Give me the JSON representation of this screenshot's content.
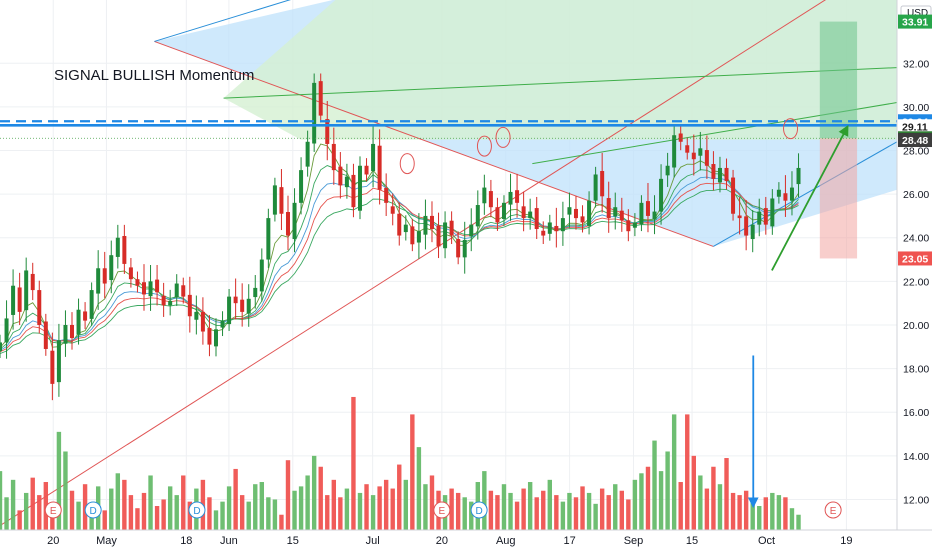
{
  "annotation_text": "SIGNAL BULLISH Momentum",
  "currency_label": "USD",
  "colors": {
    "up": "#43a047",
    "down": "#ef3b36",
    "grid": "#eef0f3",
    "price_line": "#1e88e5",
    "fib_blue": "#bfe1fb",
    "fib_green": "#d5f0d2",
    "arrow_green": "#2e9e2e",
    "arrow_blue": "#1e88e5"
  },
  "price_badges": [
    {
      "label": "33.91",
      "value": 33.91,
      "bg": "#27a54a",
      "fg": "#ffffff"
    },
    {
      "label": "29.34",
      "value": 29.34,
      "bg": "#1e88e5",
      "fg": "#ffffff"
    },
    {
      "label": "29.11",
      "value": 29.11,
      "bg": "#ffffff",
      "fg": "#1b1b1b"
    },
    {
      "label": "28.56",
      "value": 28.56,
      "bg": "#2e7d32",
      "fg": "#ffffff"
    },
    {
      "label": "28.48",
      "value": 28.48,
      "bg": "#3d3d3d",
      "fg": "#ffffff"
    },
    {
      "label": "23.05",
      "value": 23.05,
      "bg": "#ef5350",
      "fg": "#ffffff"
    }
  ],
  "earnings_markers": [
    {
      "label": "E",
      "x_day": 20,
      "kind": "earnings"
    },
    {
      "label": "D",
      "x_day": 35,
      "kind": "dividend"
    },
    {
      "label": "D",
      "x_day": 74,
      "kind": "dividend"
    },
    {
      "label": "E",
      "x_day": 166,
      "kind": "earnings"
    },
    {
      "label": "D",
      "x_day": 180,
      "kind": "dividend"
    },
    {
      "label": "E",
      "x_day": 313,
      "kind": "earnings"
    }
  ],
  "chart_data": {
    "type": "candlestick",
    "x_tick_labels": [
      {
        "label": "20",
        "day": 20
      },
      {
        "label": "May",
        "day": 40
      },
      {
        "label": "18",
        "day": 70
      },
      {
        "label": "Jun",
        "day": 86
      },
      {
        "label": "15",
        "day": 110
      },
      {
        "label": "Jul",
        "day": 140
      },
      {
        "label": "20",
        "day": 166
      },
      {
        "label": "Aug",
        "day": 190
      },
      {
        "label": "17",
        "day": 214
      },
      {
        "label": "Sep",
        "day": 238
      },
      {
        "label": "15",
        "day": 260
      },
      {
        "label": "Oct",
        "day": 288
      },
      {
        "label": "19",
        "day": 318
      }
    ],
    "y_ticks": [
      12,
      14,
      16,
      18,
      20,
      22,
      24,
      26,
      28,
      30,
      32
    ],
    "ylim": [
      10.6,
      34.9
    ],
    "xlim": [
      0,
      337
    ],
    "last_day": 300,
    "closes": [
      19.2,
      20.3,
      21.8,
      20.6,
      22.5,
      21.6,
      20.0,
      18.9,
      17.3,
      19.3,
      20.0,
      19.4,
      20.7,
      20.2,
      21.6,
      22.6,
      21.9,
      23.2,
      24.0,
      22.8,
      22.1,
      21.8,
      21.4,
      22.0,
      21.5,
      20.9,
      21.1,
      21.9,
      21.3,
      20.4,
      20.6,
      19.7,
      19.1,
      19.8,
      20.2,
      21.3,
      21.0,
      20.6,
      21.2,
      21.7,
      23.0,
      24.9,
      26.4,
      25.1,
      24.1,
      25.6,
      27.1,
      28.4,
      31.1,
      29.6,
      28.3,
      27.1,
      26.4,
      26.8,
      25.4,
      27.3,
      26.9,
      28.3,
      26.2,
      25.6,
      25.1,
      24.1,
      24.6,
      23.7,
      24.3,
      25.0,
      24.4,
      23.6,
      24.7,
      24.1,
      23.1,
      23.9,
      24.6,
      25.5,
      26.3,
      25.4,
      24.7,
      25.6,
      26.1,
      25.6,
      24.9,
      25.2,
      24.4,
      24.1,
      24.7,
      24.3,
      24.9,
      25.4,
      24.9,
      24.7,
      25.7,
      26.9,
      25.9,
      24.9,
      25.4,
      24.8,
      24.3,
      24.7,
      25.6,
      25.0,
      25.2,
      26.7,
      27.3,
      28.7,
      28.4,
      27.9,
      27.6,
      28.1,
      27.3,
      26.7,
      27.2,
      26.6,
      25.1,
      24.9,
      24.1,
      24.6,
      25.2,
      24.6,
      25.8,
      26.2,
      25.7,
      26.3,
      27.2
    ],
    "volumes": [
      13.3,
      12.1,
      12.9,
      11.5,
      12.3,
      13.0,
      12.2,
      12.8,
      11.6,
      15.1,
      14.2,
      12.4,
      11.9,
      12.7,
      11.8,
      12.6,
      11.5,
      12.5,
      13.2,
      12.9,
      12.2,
      11.6,
      12.3,
      13.1,
      11.7,
      12.0,
      12.6,
      12.2,
      13.1,
      11.9,
      12.5,
      12.9,
      12.1,
      11.5,
      11.9,
      12.6,
      13.4,
      12.2,
      11.9,
      12.7,
      12.8,
      12.1,
      12.0,
      11.3,
      13.8,
      12.4,
      12.6,
      13.1,
      14.0,
      13.5,
      12.2,
      12.9,
      12.1,
      12.5,
      16.7,
      12.3,
      12.7,
      12.2,
      12.6,
      12.9,
      12.5,
      13.6,
      12.9,
      15.9,
      14.4,
      12.7,
      13.1,
      12.4,
      12.2,
      12.5,
      12.3,
      12.1,
      11.9,
      12.8,
      13.3,
      12.4,
      12.2,
      12.7,
      12.3,
      11.9,
      12.5,
      12.8,
      12.1,
      12.4,
      12.9,
      12.2,
      11.9,
      12.3,
      12.1,
      12.6,
      12.3,
      11.8,
      12.5,
      12.2,
      12.7,
      12.4,
      12.0,
      12.9,
      13.2,
      13.5,
      14.7,
      13.3,
      14.2,
      15.9,
      12.8,
      15.9,
      14.0,
      13.1,
      12.5,
      13.5,
      12.7,
      13.9,
      12.3,
      12.2,
      12.4,
      12.0,
      11.7,
      12.1,
      12.3,
      12.2,
      12.1,
      11.6,
      11.3
    ],
    "guideline_levels": [
      29.34,
      29.11
    ]
  }
}
